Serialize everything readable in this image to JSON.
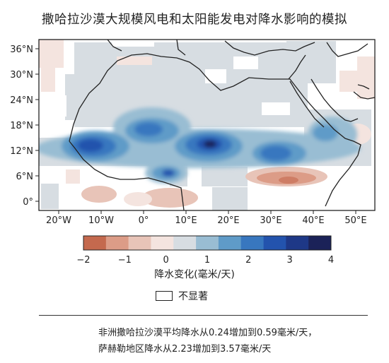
{
  "title": "撒哈拉沙漠大规模风电和太阳能发电对降水影响的模拟",
  "map": {
    "lat_ticks": [
      "36°N",
      "30°N",
      "24°N",
      "18°N",
      "12°N",
      "6°N",
      "0°"
    ],
    "lon_ticks": [
      "20°W",
      "10°W",
      "0°",
      "10°E",
      "20°E",
      "30°E",
      "40°E",
      "50°E"
    ],
    "extent": {
      "lon": [
        -25,
        55
      ],
      "lat": [
        -2,
        38
      ]
    },
    "field": "precipitation change (mm/day)",
    "max_increase_regions": [
      "Sahel 12°N, 15°W–10°W",
      "Lake Chad 13°N, 15°E",
      "Sudan 12°N, 30°E"
    ],
    "decrease_regions": [
      "South Sudan / Ethiopia 7°N, 28°E–42°E",
      "Gulf of Guinea coast 3°N"
    ]
  },
  "colorbar": {
    "ticks": [
      "−2",
      "−1",
      "0",
      "1",
      "2",
      "3",
      "4"
    ],
    "range": [
      -2,
      4
    ],
    "colors": [
      "#c4694e",
      "#dc9c87",
      "#e8c4b8",
      "#f4e4df",
      "#d7dde2",
      "#99bdd3",
      "#5f9bc8",
      "#3877bf",
      "#2353ad",
      "#1e3887",
      "#1b2258"
    ],
    "label": "降水变化(毫米/天)"
  },
  "legend": {
    "not_significant": "不显著"
  },
  "notes": [
    "非洲撒哈拉沙漠平均降水从0.24增加到0.59毫米/天，",
    "萨赫勒地区降水从2.23增加到3.57毫米/天"
  ]
}
